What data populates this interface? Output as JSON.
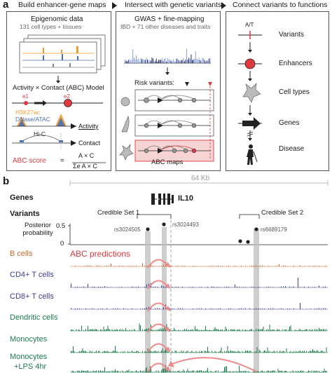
{
  "panel_a": {
    "label": "a",
    "steps": [
      "Build enhancer-gene maps",
      "Intersect with genetic variants",
      "Connect variants to functions"
    ],
    "build": {
      "epigenomic_title": "Epigenomic data",
      "epigenomic_sub": "131 cell types + tissues",
      "model_title": "Activity × Contact (ABC) Model",
      "e1": "e1",
      "e2": "e2",
      "h3k27ac": "H3K27ac",
      "dnase": "DNase/ATAC",
      "hic": "Hi-C",
      "activity": "Activity",
      "contact": "Contact",
      "abc_score_label": "ABC score",
      "eq": "=",
      "numerator": "A × C",
      "denominator": "Σe A × C"
    },
    "intersect": {
      "gwas_title": "GWAS + fine-mapping",
      "gwas_sub": "IBD + 71 other diseases and traits",
      "risk_variants": "Risk variants:",
      "abc_maps": "ABC maps"
    },
    "connect": {
      "allele": "A/T",
      "items": [
        "Variants",
        "Enhancers",
        "Cell types",
        "Genes",
        "Disease"
      ]
    },
    "colors": {
      "red": "#e0393e",
      "pink_box": "#f7d4d4",
      "orange": "#f29a2e",
      "blue": "#4c6fb3",
      "navy": "#1f2a6e"
    }
  },
  "panel_b": {
    "label": "b",
    "scale": "64 Kb",
    "genes_label": "Genes",
    "gene_name": "IL10",
    "variants_label": "Variants",
    "posterior_label": "Posterior probability",
    "y_ticks": [
      "0.5",
      "0"
    ],
    "credible_set_1": "Credible Set 1",
    "credible_set_2": "Credible Set 2",
    "snps": [
      "rs3024505",
      "rs3024493",
      "rs6689179"
    ],
    "abc_predictions": "ABC predictions",
    "tracks": [
      {
        "name": "B cells",
        "color": "#c9692b"
      },
      {
        "name": "CD4+ T cells",
        "color": "#3d3f8f"
      },
      {
        "name": "CD8+ T cells",
        "color": "#3d3f8f"
      },
      {
        "name": "Dendritic cells",
        "color": "#1e7a4f"
      },
      {
        "name": "Monocytes",
        "color": "#1e7a4f"
      },
      {
        "name": "Monocytes\n+LPS 4hr",
        "color": "#1e7a4f"
      }
    ],
    "track_line1": "Monocytes",
    "track_line2": "+LPS 4hr"
  }
}
